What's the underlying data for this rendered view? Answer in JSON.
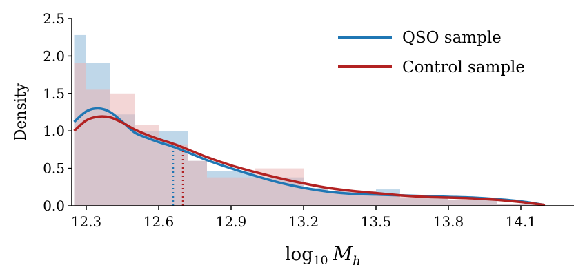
{
  "chart_data": {
    "type": "histogram_kde",
    "title": "",
    "xlabel": "log10 Mh",
    "xlabel_parts": {
      "base": "log",
      "sub": "10",
      "var": "M",
      "var_sub": "h"
    },
    "ylabel": "Density",
    "xlim": [
      12.24,
      14.32
    ],
    "ylim": [
      0,
      2.5
    ],
    "xticks": [
      12.3,
      12.6,
      12.9,
      13.2,
      13.5,
      13.8,
      14.1
    ],
    "xtick_labels": [
      "12.3",
      "12.6",
      "12.9",
      "13.2",
      "13.5",
      "13.8",
      "14.1"
    ],
    "yticks": [
      0,
      0.5,
      1.0,
      1.5,
      2.0,
      2.5
    ],
    "ytick_labels": [
      "0.0",
      "0.5",
      "1.0",
      "1.5",
      "2.0",
      "2.5"
    ],
    "legend_position": "top-right",
    "series": [
      {
        "name": "QSO sample",
        "color": "#1f77b4",
        "hist_color": "#a9c9e2",
        "bins": [
          {
            "x0": 12.25,
            "x1": 12.3,
            "y": 2.28
          },
          {
            "x0": 12.3,
            "x1": 12.4,
            "y": 1.91
          },
          {
            "x0": 12.4,
            "x1": 12.5,
            "y": 1.22
          },
          {
            "x0": 12.5,
            "x1": 12.6,
            "y": 1.0
          },
          {
            "x0": 12.6,
            "x1": 12.72,
            "y": 1.0
          },
          {
            "x0": 12.72,
            "x1": 12.8,
            "y": 0.6
          },
          {
            "x0": 12.8,
            "x1": 13.0,
            "y": 0.46
          },
          {
            "x0": 13.0,
            "x1": 13.2,
            "y": 0.38
          },
          {
            "x0": 13.2,
            "x1": 13.3,
            "y": 0.24
          },
          {
            "x0": 13.3,
            "x1": 13.5,
            "y": 0.2
          },
          {
            "x0": 13.5,
            "x1": 13.6,
            "y": 0.22
          },
          {
            "x0": 13.6,
            "x1": 13.8,
            "y": 0.1
          },
          {
            "x0": 13.8,
            "x1": 14.0,
            "y": 0.08
          },
          {
            "x0": 14.0,
            "x1": 14.2,
            "y": 0.02
          }
        ],
        "kde": {
          "x": [
            12.25,
            12.3,
            12.35,
            12.4,
            12.45,
            12.5,
            12.55,
            12.6,
            12.65,
            12.7,
            12.8,
            12.9,
            13.0,
            13.1,
            13.2,
            13.3,
            13.4,
            13.5,
            13.6,
            13.7,
            13.8,
            13.9,
            14.0,
            14.1,
            14.2
          ],
          "y": [
            1.12,
            1.26,
            1.3,
            1.25,
            1.12,
            0.98,
            0.91,
            0.85,
            0.8,
            0.74,
            0.61,
            0.5,
            0.4,
            0.31,
            0.24,
            0.19,
            0.16,
            0.15,
            0.14,
            0.13,
            0.12,
            0.11,
            0.09,
            0.06,
            0.01
          ]
        },
        "median": 12.66
      },
      {
        "name": "Control sample",
        "color": "#b22222",
        "hist_color": "#e9b4b4",
        "bins": [
          {
            "x0": 12.25,
            "x1": 12.3,
            "y": 1.91
          },
          {
            "x0": 12.3,
            "x1": 12.4,
            "y": 1.55
          },
          {
            "x0": 12.4,
            "x1": 12.5,
            "y": 1.5
          },
          {
            "x0": 12.5,
            "x1": 12.6,
            "y": 1.08
          },
          {
            "x0": 12.6,
            "x1": 12.72,
            "y": 0.82
          },
          {
            "x0": 12.72,
            "x1": 12.8,
            "y": 0.6
          },
          {
            "x0": 12.8,
            "x1": 13.0,
            "y": 0.38
          },
          {
            "x0": 13.0,
            "x1": 13.2,
            "y": 0.5
          },
          {
            "x0": 13.2,
            "x1": 13.3,
            "y": 0.22
          },
          {
            "x0": 13.3,
            "x1": 13.5,
            "y": 0.2
          },
          {
            "x0": 13.5,
            "x1": 13.6,
            "y": 0.14
          },
          {
            "x0": 13.6,
            "x1": 13.8,
            "y": 0.12
          },
          {
            "x0": 13.8,
            "x1": 14.0,
            "y": 0.08
          },
          {
            "x0": 14.0,
            "x1": 14.2,
            "y": 0.02
          }
        ],
        "kde": {
          "x": [
            12.25,
            12.3,
            12.35,
            12.4,
            12.45,
            12.5,
            12.55,
            12.6,
            12.65,
            12.7,
            12.8,
            12.9,
            13.0,
            13.1,
            13.2,
            13.3,
            13.4,
            13.5,
            13.6,
            13.7,
            13.8,
            13.9,
            14.0,
            14.1,
            14.2
          ],
          "y": [
            1.0,
            1.14,
            1.19,
            1.18,
            1.11,
            1.02,
            0.95,
            0.89,
            0.84,
            0.78,
            0.65,
            0.54,
            0.45,
            0.37,
            0.3,
            0.24,
            0.2,
            0.17,
            0.14,
            0.12,
            0.11,
            0.1,
            0.08,
            0.05,
            0.01
          ]
        },
        "median": 12.7
      }
    ]
  }
}
